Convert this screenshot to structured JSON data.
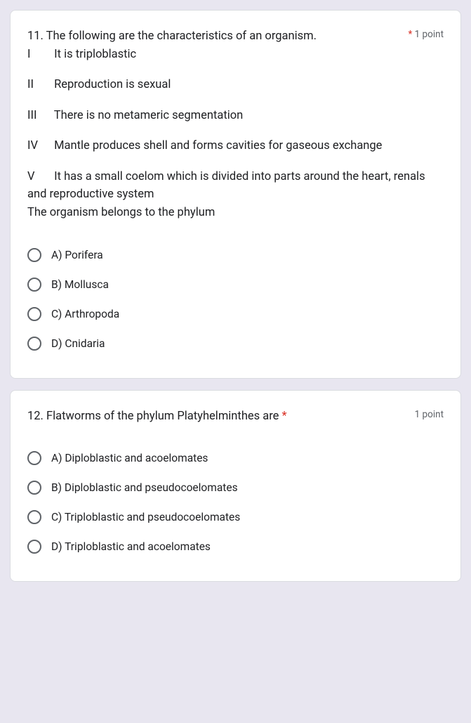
{
  "background_color": "#e8e6f0",
  "card_bg": "#ffffff",
  "card_border": "#dadce0",
  "text_color": "#202124",
  "muted_color": "#5f6368",
  "required_color": "#d93025",
  "radio_border": "#5f6368",
  "font_family": "Roboto, Arial, sans-serif",
  "q11": {
    "title_intro": "11. The following are the characteristics of an organism.",
    "required_mark": "*",
    "points_label": "1 point",
    "statements": [
      {
        "num": "I",
        "text": "It is triploblastic"
      },
      {
        "num": "II",
        "text": "Reproduction is sexual"
      },
      {
        "num": "III",
        "text": "There is no metameric segmentation"
      },
      {
        "num": "IV",
        "text": "Mantle produces shell and forms cavities for gaseous exchange"
      },
      {
        "num": "V",
        "text": "It has a small coelom which is divided into parts around the heart, renals and reproductive system"
      }
    ],
    "closing": "The organism belongs to the phylum",
    "options": [
      "A) Porifera",
      "B) Mollusca",
      "C) Arthropoda",
      "D) Cnidaria"
    ]
  },
  "q12": {
    "title": "12. Flatworms of the phylum Platyhelminthes are ",
    "required_mark": "*",
    "points_label": "1 point",
    "options": [
      "A) Diploblastic and acoelomates",
      "B) Diploblastic and pseudocoelomates",
      "C) Triploblastic and pseudocoelomates",
      "D) Triploblastic and acoelomates"
    ]
  }
}
